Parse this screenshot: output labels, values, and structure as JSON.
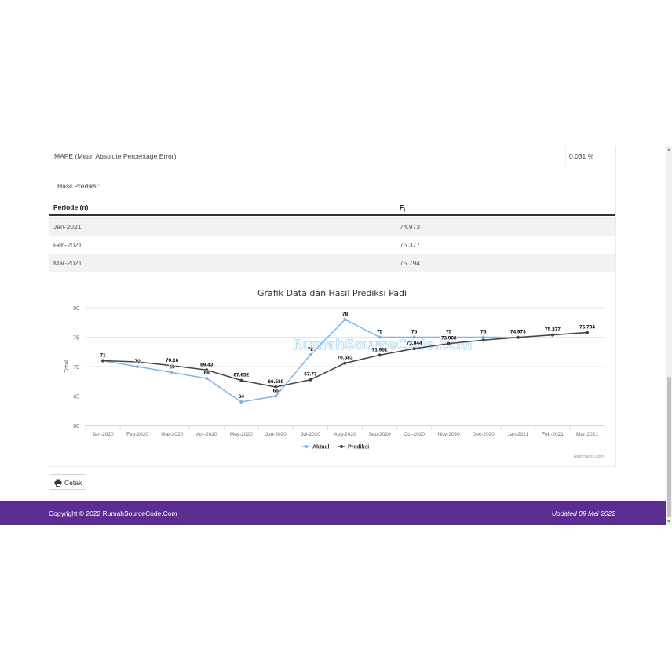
{
  "mape": {
    "label": "MAPE (Mean Absolute Percentage Error)",
    "value": "0.031 %"
  },
  "hasil_label": "Hasil Prediksi:",
  "prediction_table": {
    "headers": {
      "periode": "Periode (n)",
      "ft_main": "F",
      "ft_sub": "t"
    },
    "rows": [
      {
        "periode": "Jan-2021",
        "ft": "74.973"
      },
      {
        "periode": "Feb-2021",
        "ft": "75.377"
      },
      {
        "periode": "Mar-2021",
        "ft": "75.794"
      }
    ]
  },
  "chart_data": {
    "type": "line",
    "title": "Grafik Data dan Hasil Prediksi Padi",
    "ylabel": "Total",
    "xlabel": "",
    "ylim": [
      60,
      80
    ],
    "yticks": [
      60,
      65,
      70,
      75,
      80
    ],
    "categories": [
      "Jan-2020",
      "Feb-2020",
      "Mar-2020",
      "Apr-2020",
      "May-2020",
      "Jun-2020",
      "Jul-2020",
      "Aug-2020",
      "Sep-2020",
      "Oct-2020",
      "Nov-2020",
      "Dec-2020",
      "Jan-2021",
      "Feb-2021",
      "Mar-2021"
    ],
    "series": [
      {
        "name": "Aktual",
        "color": "#7cb5ec",
        "values": [
          71,
          70,
          69,
          68,
          64,
          65,
          72,
          78,
          75,
          75,
          75,
          75,
          74.973,
          75.377,
          75.794
        ],
        "labels": [
          "71",
          "70",
          "69",
          "68",
          "64",
          "65",
          "72",
          "78",
          "75",
          "75",
          "75",
          "75",
          "",
          "",
          ""
        ]
      },
      {
        "name": "Prediksi",
        "color": "#434348",
        "values": [
          71,
          70.8,
          70.16,
          69.43,
          67.652,
          66.539,
          67.77,
          70.583,
          71.951,
          73.044,
          73.908,
          74.5,
          74.973,
          75.377,
          75.794
        ],
        "labels": [
          "",
          "",
          "70.16",
          "69.43",
          "67.652",
          "66.539",
          "67.77",
          "70.583",
          "71.951",
          "73.044",
          "73.908",
          "",
          "74.973",
          "75.377",
          "75.794"
        ]
      }
    ],
    "legend_placement": "bottom-center",
    "grid": true,
    "credits": "Highcharts.com",
    "watermark": "RumahSourceCode.Com"
  },
  "print_button": {
    "label": "Cetak",
    "icon": "printer-icon"
  },
  "footer": {
    "copyright": "Copyright © 2022 RumahSourceCode.Com",
    "updated": "Updated 09 Mei 2022",
    "bg_color": "#5b2d91"
  }
}
